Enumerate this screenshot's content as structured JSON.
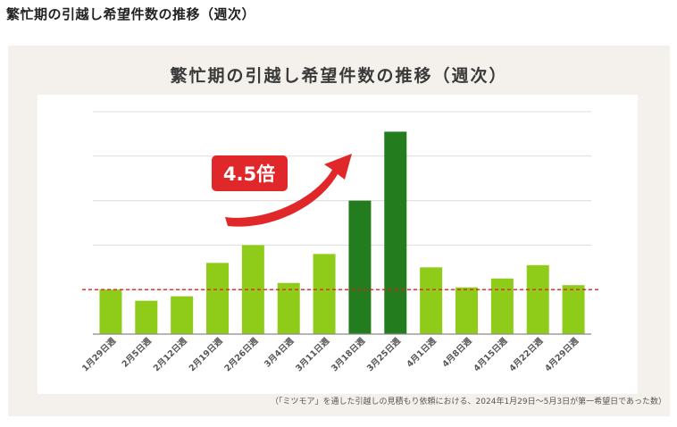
{
  "page": {
    "heading": "繁忙期の引越し希望件数の推移（週次）",
    "footnote": "（「ミツモア」を通した引越しの見積もり依頼における、2024年1月29日〜5月3日が第一希望日であった数）"
  },
  "chart_data": {
    "type": "bar",
    "title": "繁忙期の引越し希望件数の推移（週次）",
    "categories": [
      "1月29日週",
      "2月5日週",
      "2月12日週",
      "2月19日週",
      "2月26日週",
      "3月4日週",
      "3月11日週",
      "3月18日週",
      "3月25日週",
      "4月1日週",
      "4月8日週",
      "4月15日週",
      "4月22日週",
      "4月29日週"
    ],
    "values": [
      10,
      7.5,
      8.5,
      16,
      20,
      11.5,
      18,
      30,
      45.5,
      15,
      10.5,
      12.5,
      15.5,
      11
    ],
    "highlight": [
      false,
      false,
      false,
      false,
      false,
      false,
      false,
      true,
      true,
      false,
      false,
      false,
      false,
      false
    ],
    "ylim": [
      0,
      50
    ],
    "grid": true,
    "reference_line": 10,
    "annotation": "4.5倍",
    "colors": {
      "bar": "#8fcc1a",
      "highlight": "#237d1f",
      "reference": "#e02020",
      "annotation": "#e0282a"
    }
  }
}
